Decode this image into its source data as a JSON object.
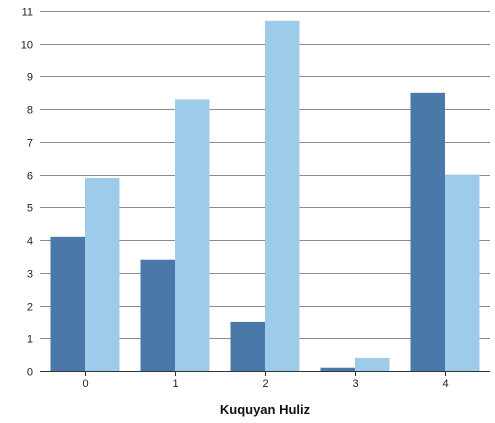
{
  "chart_data": {
    "type": "bar",
    "title": "",
    "xlabel": "Kuquyan Huliz",
    "ylabel": "",
    "categories": [
      "0",
      "1",
      "2",
      "3",
      "4"
    ],
    "series": [
      {
        "values": [
          4.1,
          3.4,
          1.5,
          0.1,
          8.5
        ],
        "color": "#4a78a8"
      },
      {
        "values": [
          5.9,
          8.3,
          10.7,
          0.4,
          6.0
        ],
        "color": "#9fcbea"
      }
    ],
    "ylim": [
      0,
      11
    ],
    "yticks": [
      "0",
      "1",
      "2",
      "3",
      "4",
      "5",
      "6",
      "7",
      "8",
      "9",
      "10",
      "11"
    ],
    "grid": true,
    "legend": "none"
  }
}
